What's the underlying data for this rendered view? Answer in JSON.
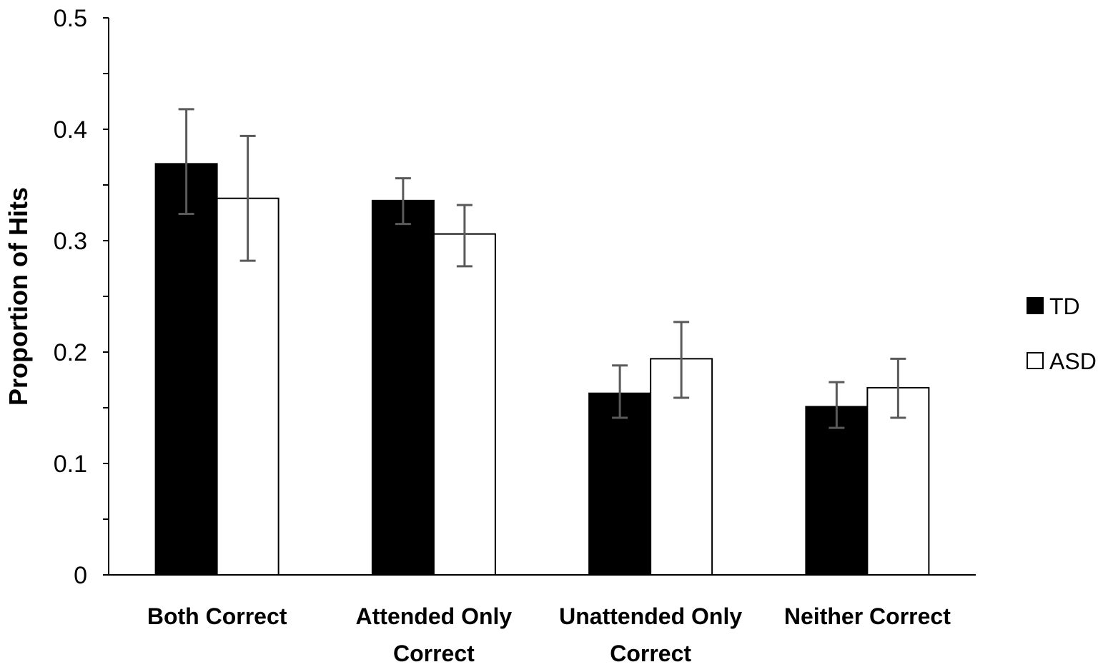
{
  "chart_data": {
    "type": "bar",
    "categories": [
      [
        "Both Correct"
      ],
      [
        "Attended Only",
        "Correct"
      ],
      [
        "Unattended Only",
        "Correct"
      ],
      [
        "Neither Correct"
      ]
    ],
    "series": [
      {
        "name": "TD",
        "color": "#000000",
        "values": [
          0.369,
          0.336,
          0.163,
          0.151
        ],
        "error_low": [
          0.324,
          0.315,
          0.141,
          0.132
        ],
        "error_high": [
          0.418,
          0.356,
          0.188,
          0.173
        ]
      },
      {
        "name": "ASD",
        "color": "#ffffff",
        "values": [
          0.338,
          0.306,
          0.194,
          0.168
        ],
        "error_low": [
          0.282,
          0.277,
          0.159,
          0.141
        ],
        "error_high": [
          0.394,
          0.332,
          0.227,
          0.194
        ]
      }
    ],
    "ylabel": "Proportion of Hits",
    "xlabel": "",
    "ylim": [
      0,
      0.5
    ],
    "yticks": [
      {
        "value": 0,
        "label": "0"
      },
      {
        "value": 0.1,
        "label": "0.1"
      },
      {
        "value": 0.2,
        "label": "0.2"
      },
      {
        "value": 0.3,
        "label": "0.3"
      },
      {
        "value": 0.4,
        "label": "0.4"
      },
      {
        "value": 0.5,
        "label": "0.5"
      }
    ],
    "minor_tick_step": 0.05,
    "grid": false,
    "legend_position": "right",
    "error_bar_color": "#5a5a5a"
  }
}
